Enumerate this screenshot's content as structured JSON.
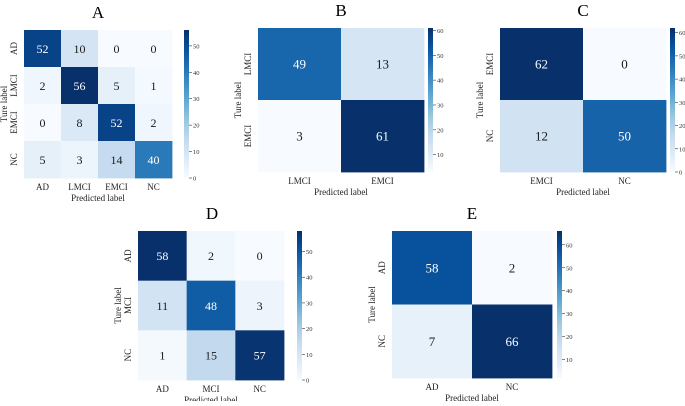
{
  "chart_data": [
    {
      "type": "heatmap",
      "title": "A",
      "xlabel": "Predicted label",
      "ylabel": "Ture label",
      "x_categories": [
        "AD",
        "LMCI",
        "EMCI",
        "NC"
      ],
      "y_categories": [
        "AD",
        "LMCI",
        "EMCI",
        "NC"
      ],
      "values": [
        [
          52,
          10,
          0,
          0
        ],
        [
          2,
          56,
          5,
          1
        ],
        [
          0,
          8,
          52,
          2
        ],
        [
          5,
          3,
          14,
          40
        ]
      ],
      "colorbar": {
        "min": 0,
        "max": 56,
        "ticks": [
          0,
          10,
          20,
          30,
          40,
          50
        ]
      }
    },
    {
      "type": "heatmap",
      "title": "B",
      "xlabel": "Predicted label",
      "ylabel": "Ture label",
      "x_categories": [
        "LMCI",
        "EMCI"
      ],
      "y_categories": [
        "LMCI",
        "EMCI"
      ],
      "values": [
        [
          49,
          13
        ],
        [
          3,
          61
        ]
      ],
      "colorbar": {
        "min": 3,
        "max": 61,
        "ticks": [
          10,
          20,
          30,
          40,
          50,
          60
        ]
      }
    },
    {
      "type": "heatmap",
      "title": "C",
      "xlabel": "Predicted label",
      "ylabel": "Ture label",
      "x_categories": [
        "EMCI",
        "NC"
      ],
      "y_categories": [
        "EMCI",
        "NC"
      ],
      "values": [
        [
          62,
          0
        ],
        [
          12,
          50
        ]
      ],
      "colorbar": {
        "min": 0,
        "max": 62,
        "ticks": [
          0,
          10,
          20,
          30,
          40,
          50,
          60
        ]
      }
    },
    {
      "type": "heatmap",
      "title": "D",
      "xlabel": "Predicted label",
      "ylabel": "Ture label",
      "x_categories": [
        "AD",
        "MCI",
        "NC"
      ],
      "y_categories": [
        "AD",
        "MCI",
        "NC"
      ],
      "values": [
        [
          58,
          2,
          0
        ],
        [
          11,
          48,
          3
        ],
        [
          1,
          15,
          57
        ]
      ],
      "colorbar": {
        "min": 0,
        "max": 58,
        "ticks": [
          0,
          10,
          20,
          30,
          40,
          50
        ]
      }
    },
    {
      "type": "heatmap",
      "title": "E",
      "xlabel": "Predicted label",
      "ylabel": "Ture label",
      "x_categories": [
        "AD",
        "NC"
      ],
      "y_categories": [
        "AD",
        "NC"
      ],
      "values": [
        [
          58,
          2
        ],
        [
          7,
          66
        ]
      ],
      "colorbar": {
        "min": 2,
        "max": 66,
        "ticks": [
          10,
          20,
          30,
          40,
          50,
          60
        ]
      }
    }
  ]
}
